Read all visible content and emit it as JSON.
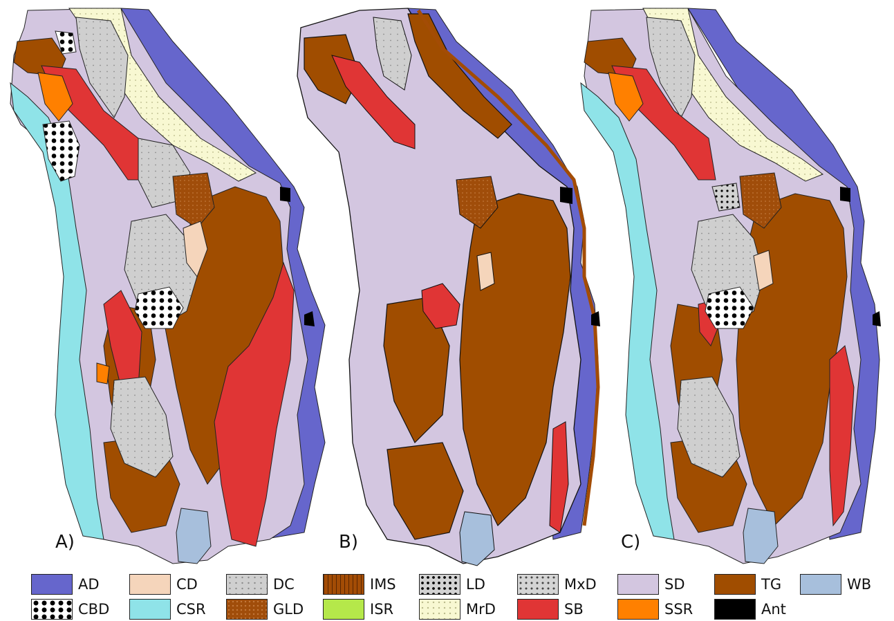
{
  "panels": [
    {
      "label": "A)"
    },
    {
      "label": "B)"
    },
    {
      "label": "C)"
    }
  ],
  "legend": [
    {
      "code": "AD",
      "color": "#6666cc",
      "pattern": ""
    },
    {
      "code": "CBD",
      "color": "#ffffff",
      "pattern": "large-black-dots"
    },
    {
      "code": "CD",
      "color": "#f5d5bb",
      "pattern": ""
    },
    {
      "code": "CSR",
      "color": "#8fe3e8",
      "pattern": ""
    },
    {
      "code": "DC",
      "color": "#cfcfcf",
      "pattern": "sparse-dots"
    },
    {
      "code": "GLD",
      "color": "#a04d0a",
      "pattern": "fine-dots"
    },
    {
      "code": "IMS",
      "color": "#a34c05",
      "pattern": "vertical-lines"
    },
    {
      "code": "ISR",
      "color": "#b5e84a",
      "pattern": ""
    },
    {
      "code": "LD",
      "color": "#d2d2d2",
      "pattern": "black-dots"
    },
    {
      "code": "MrD",
      "color": "#f8f8d2",
      "pattern": "light-dots"
    },
    {
      "code": "MxD",
      "color": "#d4d4d4",
      "pattern": "dots"
    },
    {
      "code": "SB",
      "color": "#e03535",
      "pattern": ""
    },
    {
      "code": "SD",
      "color": "#d3c6e0",
      "pattern": ""
    },
    {
      "code": "SSR",
      "color": "#ff8000",
      "pattern": ""
    },
    {
      "code": "TG",
      "color": "#a04d00",
      "pattern": ""
    },
    {
      "code": "Ant",
      "color": "#000000",
      "pattern": ""
    },
    {
      "code": "WB",
      "color": "#a7bfdc",
      "pattern": ""
    }
  ]
}
